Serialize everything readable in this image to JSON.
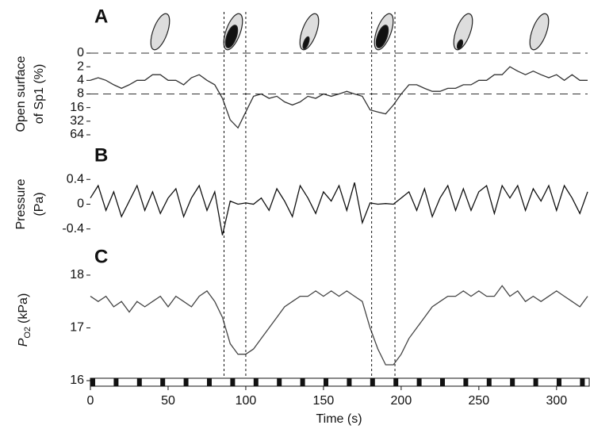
{
  "vlines": [
    86,
    100,
    181,
    196
  ],
  "chart_data": [
    {
      "type": "line",
      "label": "A",
      "ylabel": [
        "Open surface",
        "of Sp1 (%)"
      ],
      "color": "#333333",
      "yscale": "symlog",
      "linthresh": 2,
      "ylim": [
        0,
        64
      ],
      "yticks": [
        0,
        2,
        4,
        8,
        16,
        32,
        64
      ],
      "hlines": [
        0,
        8
      ],
      "xlim": [
        0,
        320
      ],
      "x": [
        0,
        5,
        10,
        15,
        20,
        25,
        30,
        35,
        40,
        45,
        50,
        55,
        60,
        65,
        70,
        75,
        80,
        85,
        90,
        95,
        100,
        105,
        110,
        115,
        120,
        125,
        130,
        135,
        140,
        145,
        150,
        155,
        160,
        165,
        170,
        175,
        180,
        185,
        190,
        195,
        200,
        205,
        210,
        215,
        220,
        225,
        230,
        235,
        240,
        245,
        250,
        255,
        260,
        265,
        270,
        275,
        280,
        285,
        290,
        295,
        300,
        305,
        310,
        315,
        320
      ],
      "values": [
        4,
        3.5,
        4,
        5,
        6,
        5,
        4,
        4,
        3,
        3,
        4,
        4,
        5,
        3.5,
        3,
        4,
        5,
        10,
        30,
        45,
        20,
        9,
        8,
        10,
        9,
        12,
        14,
        12,
        9,
        10,
        8,
        9,
        8,
        7,
        8,
        9,
        18,
        20,
        22,
        14,
        8,
        5,
        5,
        6,
        7,
        7,
        6,
        6,
        5,
        5,
        4,
        4,
        3,
        3,
        2,
        2.5,
        3,
        2.5,
        3,
        3.5,
        3,
        4,
        3,
        4,
        4
      ]
    },
    {
      "type": "line",
      "label": "B",
      "ylabel": [
        "Pressure",
        "(Pa)"
      ],
      "color": "#111111",
      "ylim": [
        -0.8,
        0.8
      ],
      "yticks": [
        -0.4,
        0,
        0.4
      ],
      "xlim": [
        0,
        320
      ],
      "x": [
        0,
        5,
        10,
        15,
        20,
        25,
        30,
        35,
        40,
        45,
        50,
        55,
        60,
        65,
        70,
        75,
        80,
        85,
        90,
        95,
        100,
        105,
        110,
        115,
        120,
        125,
        130,
        135,
        140,
        145,
        150,
        155,
        160,
        165,
        170,
        175,
        180,
        185,
        190,
        195,
        200,
        205,
        210,
        215,
        220,
        225,
        230,
        235,
        240,
        245,
        250,
        255,
        260,
        265,
        270,
        275,
        280,
        285,
        290,
        295,
        300,
        305,
        310,
        315,
        320
      ],
      "values": [
        0.1,
        0.3,
        -0.1,
        0.2,
        -0.2,
        0.05,
        0.3,
        -0.1,
        0.2,
        -0.15,
        0.1,
        0.25,
        -0.2,
        0.1,
        0.3,
        -0.1,
        0.2,
        -0.5,
        0.05,
        0,
        0.02,
        0,
        0.1,
        -0.1,
        0.25,
        0.05,
        -0.2,
        0.3,
        0.1,
        -0.15,
        0.2,
        0.05,
        0.3,
        -0.1,
        0.35,
        -0.3,
        0.02,
        0,
        0.01,
        0,
        0.1,
        0.2,
        -0.1,
        0.25,
        -0.2,
        0.1,
        0.3,
        -0.1,
        0.25,
        -0.1,
        0.2,
        0.3,
        -0.15,
        0.3,
        0.1,
        0.3,
        -0.1,
        0.25,
        0.05,
        0.3,
        -0.1,
        0.3,
        0.1,
        -0.15,
        0.2
      ]
    },
    {
      "type": "line",
      "label": "C",
      "ylabel": {
        "main": "P",
        "sub": "O2",
        "unit": "(kPa)"
      },
      "color": "#444444",
      "ylim": [
        16,
        18.3
      ],
      "yticks": [
        16,
        17,
        18
      ],
      "xlim": [
        0,
        320
      ],
      "xticks": [
        0,
        50,
        100,
        150,
        200,
        250,
        300
      ],
      "xlabel": "Time (s)",
      "x": [
        0,
        5,
        10,
        15,
        20,
        25,
        30,
        35,
        40,
        45,
        50,
        55,
        60,
        65,
        70,
        75,
        80,
        85,
        90,
        95,
        100,
        105,
        110,
        115,
        120,
        125,
        130,
        135,
        140,
        145,
        150,
        155,
        160,
        165,
        170,
        175,
        180,
        185,
        190,
        195,
        200,
        205,
        210,
        215,
        220,
        225,
        230,
        235,
        240,
        245,
        250,
        255,
        260,
        265,
        270,
        275,
        280,
        285,
        290,
        295,
        300,
        305,
        310,
        315,
        320
      ],
      "values": [
        17.6,
        17.5,
        17.6,
        17.4,
        17.5,
        17.3,
        17.5,
        17.4,
        17.5,
        17.6,
        17.4,
        17.6,
        17.5,
        17.4,
        17.6,
        17.7,
        17.5,
        17.2,
        16.7,
        16.5,
        16.5,
        16.6,
        16.8,
        17.0,
        17.2,
        17.4,
        17.5,
        17.6,
        17.6,
        17.7,
        17.6,
        17.7,
        17.6,
        17.7,
        17.6,
        17.5,
        17.0,
        16.6,
        16.3,
        16.3,
        16.5,
        16.8,
        17.0,
        17.2,
        17.4,
        17.5,
        17.6,
        17.6,
        17.7,
        17.6,
        17.7,
        17.6,
        17.6,
        17.8,
        17.6,
        17.7,
        17.5,
        17.6,
        17.5,
        17.6,
        17.7,
        17.6,
        17.5,
        17.4,
        17.6
      ]
    }
  ]
}
